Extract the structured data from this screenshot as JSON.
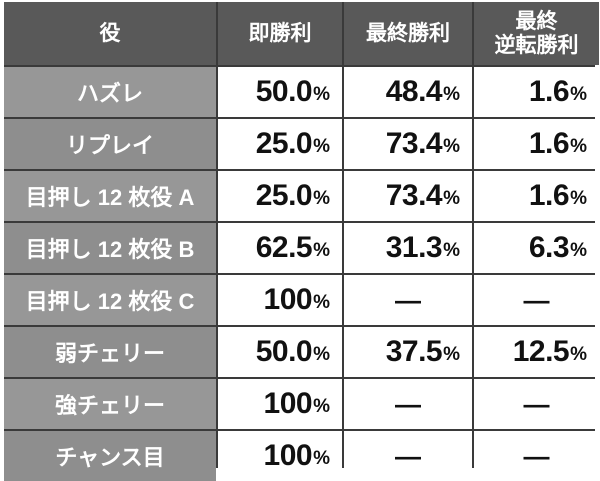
{
  "headers": {
    "yaku": "役",
    "immediate": "即勝利",
    "final": "最終勝利",
    "comeback_line1": "最終",
    "comeback_line2": "逆転勝利"
  },
  "percent_sign": "%",
  "rows": [
    {
      "label": "ハズレ",
      "immediate": "50.0",
      "final": "48.4",
      "comeback": "1.6"
    },
    {
      "label": "リプレイ",
      "immediate": "25.0",
      "final": "73.4",
      "comeback": "1.6"
    },
    {
      "label": "目押し 12 枚役 A",
      "immediate": "25.0",
      "final": "73.4",
      "comeback": "1.6"
    },
    {
      "label": "目押し 12 枚役 B",
      "immediate": "62.5",
      "final": "31.3",
      "comeback": "6.3"
    },
    {
      "label": "目押し 12 枚役 C",
      "immediate": "100",
      "final": "—",
      "comeback": "—"
    },
    {
      "label": "弱チェリー",
      "immediate": "50.0",
      "final": "37.5",
      "comeback": "12.5"
    },
    {
      "label": "強チェリー",
      "immediate": "100",
      "final": "—",
      "comeback": "—"
    },
    {
      "label": "チャンス目",
      "immediate": "100",
      "final": "—",
      "comeback": "—"
    }
  ]
}
